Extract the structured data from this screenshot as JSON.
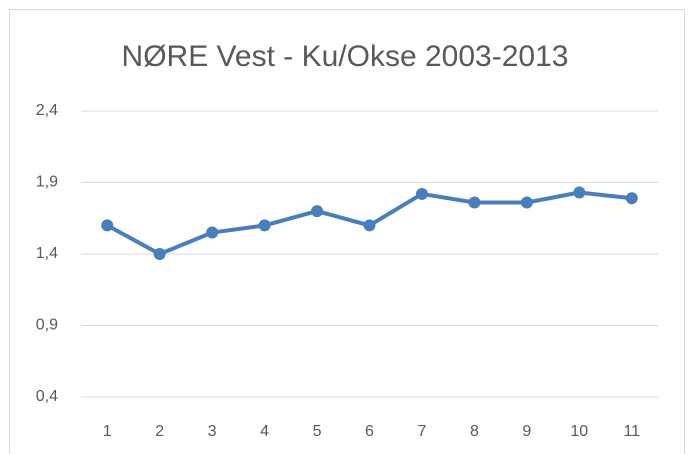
{
  "chart_data": {
    "type": "line",
    "title": "NØRE Vest - Ku/Okse 2003-2013",
    "categories": [
      "1",
      "2",
      "3",
      "4",
      "5",
      "6",
      "7",
      "8",
      "9",
      "10",
      "11"
    ],
    "series": [
      {
        "color": "#4a7ebb",
        "values": [
          1.6,
          1.4,
          1.55,
          1.6,
          1.7,
          1.6,
          1.82,
          1.76,
          1.76,
          1.83,
          1.79
        ]
      }
    ],
    "ylim": [
      0.4,
      2.4
    ],
    "yticks": [
      {
        "value": 0.4,
        "label": "0,4"
      },
      {
        "value": 0.9,
        "label": "0,9"
      },
      {
        "value": 1.4,
        "label": "1,4"
      },
      {
        "value": 1.9,
        "label": "1,9"
      },
      {
        "value": 2.4,
        "label": "2,4"
      }
    ],
    "grid": true
  }
}
